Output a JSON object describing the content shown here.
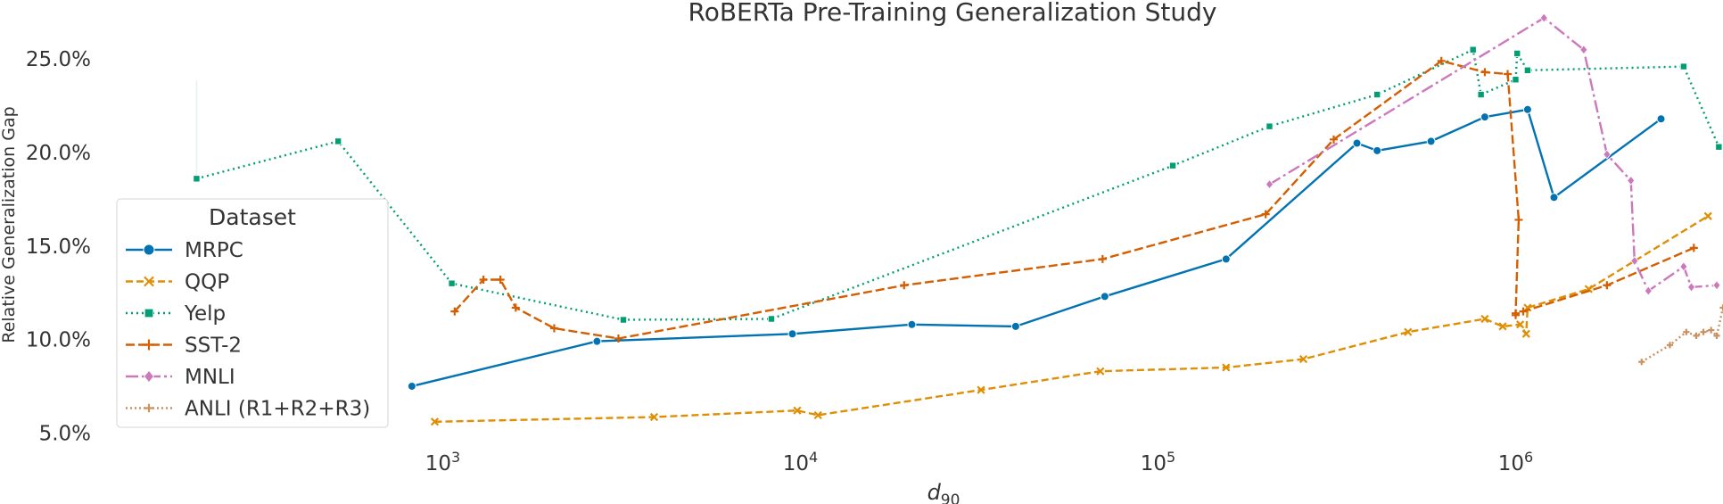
{
  "chart_data": {
    "type": "line",
    "title": "RoBERTa Pre-Training Generalization Study",
    "xlabel_main": "d",
    "xlabel_sub": "90",
    "ylabel": "Relative Generalization Gap",
    "x_scale": "log",
    "xlim": [
      110,
      3800000
    ],
    "ylim": [
      4.3,
      27.3
    ],
    "x_ticks": [
      {
        "value": 1000,
        "base": "10",
        "exp": "3"
      },
      {
        "value": 10000,
        "base": "10",
        "exp": "4"
      },
      {
        "value": 100000,
        "base": "10",
        "exp": "5"
      },
      {
        "value": 1000000,
        "base": "10",
        "exp": "6"
      }
    ],
    "y_ticks": [
      {
        "value": 5,
        "label": "5.0%"
      },
      {
        "value": 10,
        "label": "10.0%"
      },
      {
        "value": 15,
        "label": "15.0%"
      },
      {
        "value": 20,
        "label": "20.0%"
      },
      {
        "value": 25,
        "label": "25.0%"
      }
    ],
    "grid": false,
    "legend": {
      "title": "Dataset",
      "placement": "left"
    },
    "series": [
      {
        "name": "MRPC",
        "color": "#0173b2",
        "dash": "",
        "marker": "circle",
        "points": [
          [
            820,
            7.5
          ],
          [
            2700,
            9.9
          ],
          [
            9500,
            10.3
          ],
          [
            20500,
            10.8
          ],
          [
            40000,
            10.7
          ],
          [
            71000,
            12.3
          ],
          [
            155000,
            14.3
          ],
          [
            360000,
            20.5
          ],
          [
            410000,
            20.1
          ],
          [
            580000,
            20.6
          ],
          [
            820000,
            21.9
          ],
          [
            1080000,
            22.3
          ],
          [
            1280000,
            17.6
          ],
          [
            2550000,
            21.8
          ]
        ]
      },
      {
        "name": "QQP",
        "color": "#de8f05",
        "dash": "8,4",
        "marker": "x",
        "points": [
          [
            950,
            5.6
          ],
          [
            3900,
            5.85
          ],
          [
            9800,
            6.2
          ],
          [
            11200,
            5.95
          ],
          [
            32000,
            7.3
          ],
          [
            69000,
            8.3
          ],
          [
            155000,
            8.5
          ],
          [
            255000,
            8.95
          ],
          [
            500000,
            10.4
          ],
          [
            820000,
            11.1
          ],
          [
            920000,
            10.7
          ],
          [
            1030000,
            10.8
          ],
          [
            1070000,
            10.3
          ],
          [
            1080000,
            11.7
          ],
          [
            1600000,
            12.7
          ],
          [
            3450000,
            16.6
          ]
        ]
      },
      {
        "name": "Yelp",
        "color": "#029e73",
        "dash": "2,4",
        "marker": "square",
        "points": [
          [
            205,
            18.6
          ],
          [
            510,
            20.6
          ],
          [
            1060,
            13.0
          ],
          [
            3200,
            11.05
          ],
          [
            8300,
            11.1
          ],
          [
            110000,
            19.3
          ],
          [
            205000,
            21.4
          ],
          [
            410000,
            23.1
          ],
          [
            760000,
            25.5
          ],
          [
            800000,
            23.1
          ],
          [
            1000000,
            23.9
          ],
          [
            1010000,
            25.3
          ],
          [
            1080000,
            24.4
          ],
          [
            2950000,
            24.6
          ],
          [
            3700000,
            20.3
          ]
        ]
      },
      {
        "name": "SST-2",
        "color": "#d55e00",
        "dash": "10,4",
        "marker": "plus",
        "points": [
          [
            1080,
            11.5
          ],
          [
            1300,
            13.2
          ],
          [
            1450,
            13.2
          ],
          [
            1600,
            11.7
          ],
          [
            2050,
            10.6
          ],
          [
            3100,
            10.05
          ],
          [
            19500,
            12.9
          ],
          [
            70000,
            14.3
          ],
          [
            200000,
            16.7
          ],
          [
            310000,
            20.7
          ],
          [
            620000,
            24.9
          ],
          [
            820000,
            24.3
          ],
          [
            950000,
            24.2
          ],
          [
            1020000,
            16.4
          ],
          [
            1000000,
            11.4
          ],
          [
            1000000,
            11.3
          ],
          [
            1050000,
            11.5
          ],
          [
            1800000,
            12.9
          ],
          [
            3150000,
            14.9
          ]
        ]
      },
      {
        "name": "MNLI",
        "color": "#cc78bc",
        "dash": "14,4,3,4",
        "marker": "diamond",
        "points": [
          [
            205000,
            18.3
          ],
          [
            1200000,
            27.2
          ],
          [
            1550000,
            25.5
          ],
          [
            1800000,
            19.9
          ],
          [
            2100000,
            18.5
          ],
          [
            2150000,
            14.2
          ],
          [
            2350000,
            12.6
          ],
          [
            2950000,
            13.9
          ],
          [
            3100000,
            12.8
          ],
          [
            3650000,
            12.9
          ]
        ]
      },
      {
        "name": "ANLI (R1+R2+R3)",
        "color": "#ca9161",
        "dash": "2,3",
        "marker": "plus-small",
        "points": [
          [
            2250000,
            8.8
          ],
          [
            2700000,
            9.7
          ],
          [
            3000000,
            10.4
          ],
          [
            3200000,
            10.2
          ],
          [
            3350000,
            10.4
          ],
          [
            3520000,
            10.5
          ],
          [
            3650000,
            10.2
          ],
          [
            3800000,
            11.7
          ]
        ]
      }
    ]
  }
}
